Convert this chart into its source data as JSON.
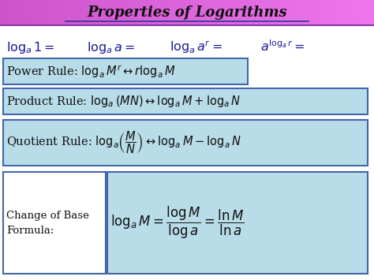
{
  "title": "Properties of Logarithms",
  "bg_color": "#ffffff",
  "title_bg_left": "#dd66dd",
  "title_bg_right": "#ee88ee",
  "box_fill": "#b8dde8",
  "box_edge": "#4466aa",
  "fig_width": 4.74,
  "fig_height": 3.55,
  "dpi": 100,
  "cob_label": "Change of Base\nFormula:"
}
